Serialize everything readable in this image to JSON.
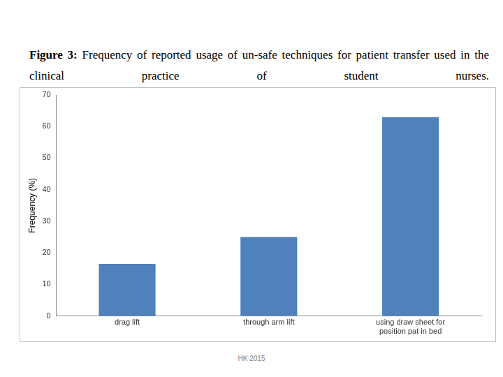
{
  "chart_data": {
    "type": "bar",
    "title": "Figure 3: Frequency of reported usage of un-safe techniques for patient transfer used in the clinical practice of student nurses.",
    "y_label": "Frequency (%)",
    "categories": [
      "drag lift",
      "through arm lift",
      "using draw sheet for position pat in bed"
    ],
    "values": [
      16.5,
      25,
      63
    ],
    "color": "#4f81bd",
    "ylim": [
      0,
      70
    ],
    "yticks": [
      0,
      10,
      20,
      30,
      40,
      50,
      60,
      70
    ],
    "grid": false,
    "annotations": [
      "HK 2015"
    ]
  }
}
